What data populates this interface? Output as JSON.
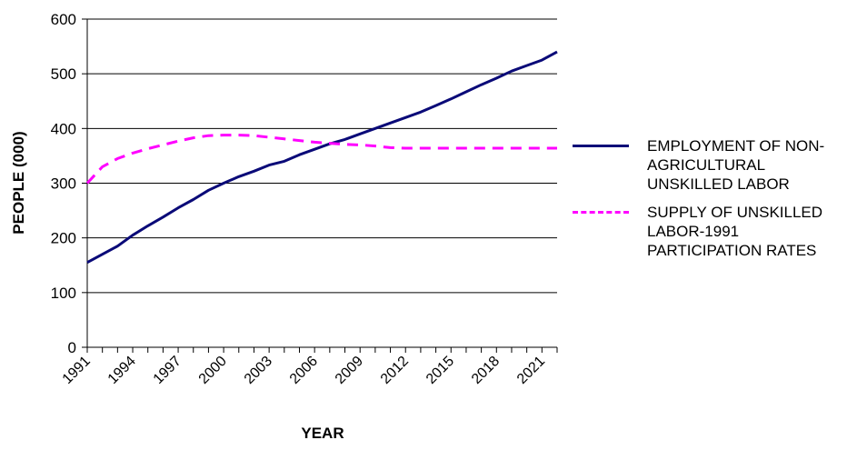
{
  "chart_data": {
    "type": "line",
    "xlabel": "YEAR",
    "ylabel": "PEOPLE (000)",
    "ylim": [
      0,
      600
    ],
    "yticks": [
      0,
      100,
      200,
      300,
      400,
      500,
      600
    ],
    "x_tick_labels": [
      "1991",
      "1994",
      "1997",
      "2000",
      "2003",
      "2006",
      "2009",
      "2012",
      "2015",
      "2018",
      "2021"
    ],
    "x": [
      1991,
      1992,
      1993,
      1994,
      1995,
      1996,
      1997,
      1998,
      1999,
      2000,
      2001,
      2002,
      2003,
      2004,
      2005,
      2006,
      2007,
      2008,
      2009,
      2010,
      2011,
      2012,
      2013,
      2014,
      2015,
      2016,
      2017,
      2018,
      2019,
      2020,
      2021,
      2022
    ],
    "grid": "horizontal",
    "legend_position": "right",
    "series": [
      {
        "name": "EMPLOYMENT OF NON-\nAGRICULTURAL\nUNSKILLED LABOR",
        "color": "#0a0a78",
        "style": "solid",
        "values": [
          155,
          170,
          185,
          205,
          222,
          238,
          255,
          270,
          287,
          300,
          312,
          322,
          333,
          340,
          352,
          362,
          372,
          380,
          390,
          400,
          410,
          420,
          430,
          442,
          454,
          467,
          480,
          492,
          505,
          515,
          525,
          540
        ]
      },
      {
        "name": "SUPPLY OF UNSKILLED\nLABOR-1991\nPARTICIPATION RATES",
        "color": "#ff00ff",
        "style": "dashed",
        "values": [
          300,
          330,
          345,
          355,
          363,
          370,
          377,
          383,
          387,
          388,
          388,
          387,
          384,
          381,
          378,
          375,
          373,
          371,
          370,
          368,
          365,
          364,
          364,
          364,
          364,
          364,
          364,
          364,
          364,
          364,
          364,
          364
        ]
      }
    ]
  }
}
